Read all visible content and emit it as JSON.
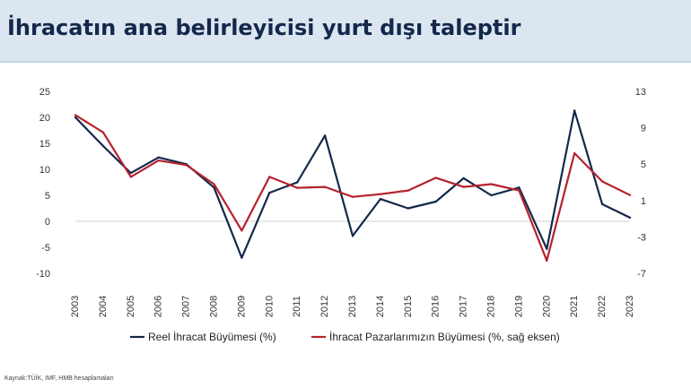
{
  "title": "İhracatın ana belirleyicisi yurt dışı taleptir",
  "source": "Kaynak:TÜİK, IMF, HMB hesaplamaları",
  "chart_data": {
    "type": "line",
    "title": "İhracatın ana belirleyicisi yurt dışı taleptir",
    "x": [
      "2003",
      "2004",
      "2005",
      "2006",
      "2007",
      "2008",
      "2009",
      "2010",
      "2011",
      "2012",
      "2013",
      "2014",
      "2015",
      "2016",
      "2017",
      "2018",
      "2019",
      "2020",
      "2021",
      "2022",
      "2023"
    ],
    "y_left": {
      "ylim": [
        -10,
        25
      ],
      "ticks": [
        -10,
        -5,
        0,
        5,
        10,
        15,
        20,
        25
      ]
    },
    "y_right": {
      "ylim": [
        -7,
        13
      ],
      "ticks": [
        -7,
        -3,
        1,
        5,
        9,
        13
      ]
    },
    "series": [
      {
        "name": "Reel İhracat Büyümesi (%)",
        "axis": "left",
        "color": "#14284b",
        "values": [
          20.0,
          14.5,
          9.3,
          12.3,
          11.0,
          6.5,
          -7.0,
          5.5,
          7.5,
          16.5,
          -2.8,
          4.3,
          2.5,
          3.8,
          8.3,
          5.0,
          6.5,
          -5.3,
          21.3,
          3.3,
          0.7
        ]
      },
      {
        "name": "İhracat Pazarlarımızın Büyümesi (%, sağ eksen)",
        "axis": "right",
        "color": "#b5222d",
        "values": [
          10.4,
          8.5,
          3.6,
          5.4,
          4.9,
          2.8,
          -2.3,
          3.6,
          2.4,
          2.5,
          1.4,
          1.7,
          2.1,
          3.5,
          2.5,
          2.8,
          2.1,
          -5.6,
          6.2,
          3.1,
          1.6
        ]
      }
    ],
    "legend_position": "bottom",
    "grid": false
  }
}
